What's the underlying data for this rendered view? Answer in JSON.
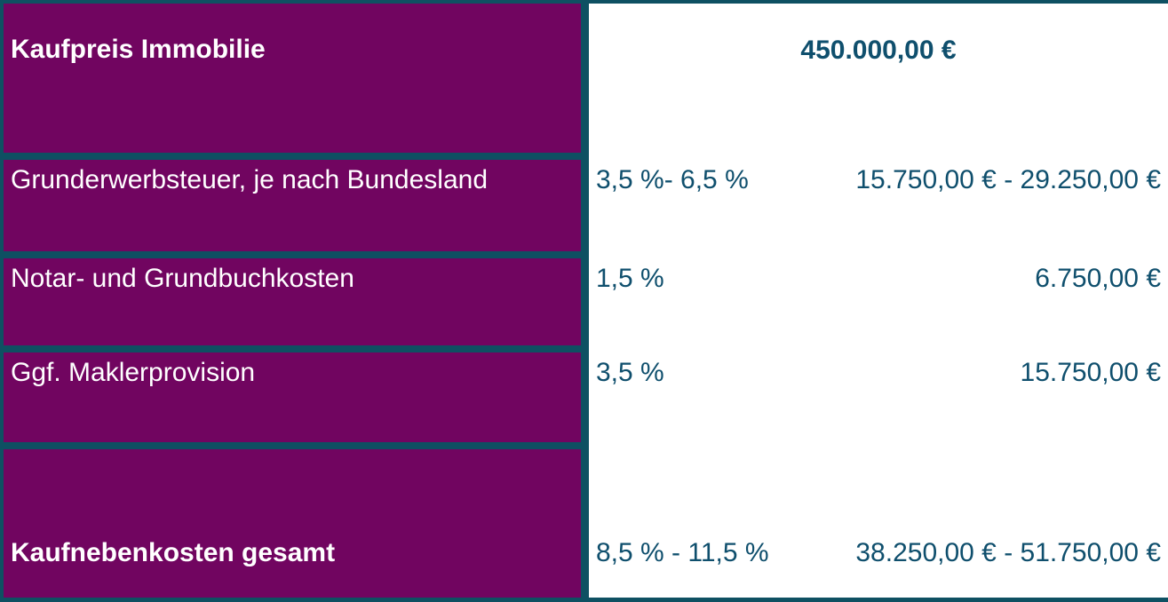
{
  "colors": {
    "frame_teal": "#0E5062",
    "cell_purple": "#710560",
    "value_text_teal": "#0F4F6D",
    "panel_white": "#FFFFFF",
    "label_text_white": "#FFFFFF"
  },
  "table": {
    "title_row": {
      "label": "Kaufpreis Immobilie",
      "amount": "450.000,00 €"
    },
    "rows": [
      {
        "label": "Grunderwerbsteuer, je nach Bundesland",
        "percent": "3,5 %- 6,5 %",
        "amount": "15.750,00 € - 29.250,00 €"
      },
      {
        "label": "Notar- und Grundbuchkosten",
        "percent": "1,5 %",
        "amount": "6.750,00 €"
      },
      {
        "label": "Ggf. Maklerprovision",
        "percent": "3,5 %",
        "amount": "15.750,00 €"
      }
    ],
    "total_row": {
      "label": "Kaufnebenkosten gesamt",
      "percent": "8,5 % - 11,5 %",
      "amount": "38.250,00 € - 51.750,00 €"
    }
  }
}
